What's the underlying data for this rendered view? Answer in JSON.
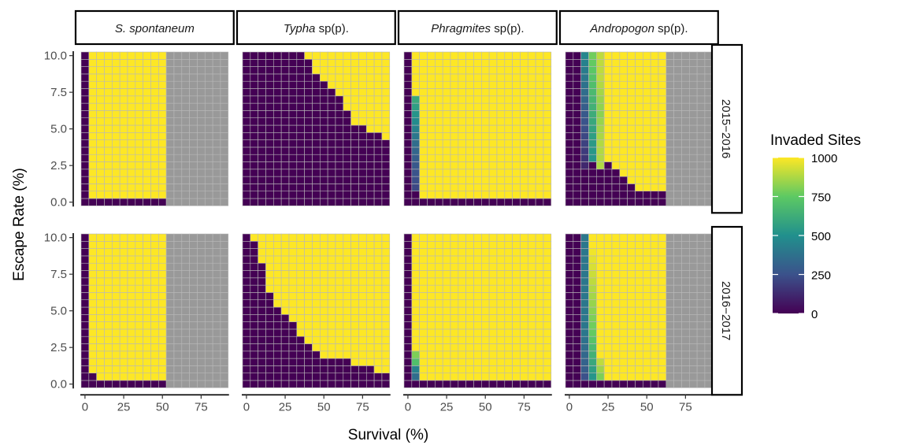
{
  "chart_data": {
    "type": "heatmap",
    "xlabel": "Survival (%)",
    "ylabel": "Escape Rate (%)",
    "x_values": [
      0,
      5,
      10,
      15,
      20,
      25,
      30,
      35,
      40,
      45,
      50,
      55,
      60,
      65,
      70,
      75,
      80,
      85,
      90
    ],
    "y_values": [
      0,
      0.5,
      1,
      1.5,
      2,
      2.5,
      3,
      3.5,
      4,
      4.5,
      5,
      5.5,
      6,
      6.5,
      7,
      7.5,
      8,
      8.5,
      9,
      9.5,
      10
    ],
    "x_ticks": [
      "0",
      "25",
      "50",
      "75"
    ],
    "y_ticks": [
      "0.0",
      "2.5",
      "5.0",
      "7.5",
      "10.0"
    ],
    "xlim": [
      0,
      90
    ],
    "ylim": [
      0,
      10
    ],
    "missing_color": "#999999",
    "grid_color": "#b8b8b8",
    "colorscale": [
      "#440154",
      "#3b528b",
      "#21908d",
      "#5dc963",
      "#fde725"
    ],
    "legend": {
      "title": "Invaded Sites",
      "ticks": [
        "0",
        "250",
        "500",
        "750",
        "1000"
      ],
      "range": [
        0,
        1000
      ],
      "placement": "right"
    },
    "columns": [
      {
        "italic": "S. spontaneum",
        "suffix": ""
      },
      {
        "italic": "Typha",
        "suffix": " sp(p)."
      },
      {
        "italic": "Phragmites",
        "suffix": " sp(p)."
      },
      {
        "italic": "Andropogon",
        "suffix": " sp(p)."
      }
    ],
    "rows": [
      "2015−2016",
      "2016−2017"
    ],
    "panels": [
      {
        "species": "S. spontaneum",
        "period": "2015−2016",
        "survival_max": 50,
        "rule": "invaded (1000) when survival ≥ 5 and escape ≥ 0.5; 0 otherwise; not simulated (NA) when survival > 50"
      },
      {
        "species": "Typha sp(p).",
        "period": "2015−2016",
        "min_survival_for_full_invasion_by_escape": {
          "10": 40,
          "9.5": 45,
          "9": 45,
          "8.5": 50,
          "8": 55,
          "7.5": 60,
          "7": 65,
          "6.5": 65,
          "6": 70,
          "5.5": 70,
          "5": 80,
          "4.5": 90,
          "4": null,
          "3.5": null,
          "3": null,
          "2.5": null,
          "2": null,
          "1.5": null,
          "1": null,
          "0.5": null,
          "0": null
        }
      },
      {
        "species": "Phragmites sp(p).",
        "period": "2015−2016",
        "survival_5_column": {
          "10": 1000,
          "9.5": 1000,
          "9": 1000,
          "8.5": 1000,
          "8": 1000,
          "7.5": 1000,
          "7": 600,
          "6.5": 560,
          "6": 520,
          "5.5": 480,
          "5": 440,
          "4.5": 400,
          "4": 360,
          "3.5": 330,
          "3": 300,
          "2.5": 280,
          "2": 260,
          "1.5": 240,
          "1": 220,
          "0.5": 0,
          "0": 0
        },
        "rule": "0 at survival 0; 1000 for survival ≥ 10 and escape ≥ 0.5; 0 at escape 0"
      },
      {
        "species": "Andropogon sp(p).",
        "period": "2015−2016",
        "survival_max": 60,
        "partial_columns": {
          "10": [
            0,
            0,
            0,
            0,
            0,
            120,
            160,
            180,
            200,
            220,
            240,
            260,
            280,
            300,
            330,
            360,
            380,
            400,
            420,
            440,
            460
          ],
          "15": [
            0,
            0,
            0,
            0,
            0,
            0,
            520,
            530,
            540,
            560,
            580,
            600,
            620,
            640,
            660,
            680,
            700,
            720,
            740,
            760,
            780
          ],
          "20": [
            0,
            0,
            0,
            0,
            0,
            880,
            880,
            880,
            880,
            870,
            860,
            840,
            820,
            830,
            840,
            860,
            880,
            900,
            900,
            900,
            900
          ]
        },
        "note": "columns listed bottom (escape 0) to top (escape 10); 0 at survival 0 and 5; full invasion above a boundary descending to escape 1 at survival 45–55"
      },
      {
        "species": "S. spontaneum",
        "period": "2016−2017",
        "survival_max": 50,
        "rule": "invaded (1000) when survival ≥ 10 and escape ≥ 0.5, or survival = 5 and escape ≥ 1; 0 otherwise"
      },
      {
        "species": "Typha sp(p).",
        "period": "2016−2017",
        "min_survival_for_full_invasion_by_escape": {
          "10": 5,
          "9.5": 10,
          "9": 10,
          "8.5": 10,
          "8": 15,
          "7.5": 15,
          "7": 15,
          "6.5": 15,
          "6": 20,
          "5.5": 20,
          "5": 25,
          "4.5": 30,
          "4": 35,
          "3.5": 35,
          "3": 40,
          "2.5": 45,
          "2": 50,
          "1.5": 70,
          "1": 85,
          "0.5": null,
          "0": null
        }
      },
      {
        "species": "Phragmites sp(p).",
        "period": "2016−2017",
        "survival_5_column": {
          "10": 1000,
          "9.5": 1000,
          "9": 1000,
          "8.5": 1000,
          "8": 1000,
          "7.5": 1000,
          "7": 1000,
          "6.5": 1000,
          "6": 1000,
          "5.5": 1000,
          "5": 1000,
          "4.5": 1000,
          "4": 1000,
          "3.5": 1000,
          "3": 1000,
          "2.5": 1000,
          "2": 800,
          "1.5": 700,
          "1": 440,
          "0.5": 360,
          "0": 0
        },
        "rule": "0 at survival 0; 1000 for survival ≥ 10 and escape ≥ 0.5; 0 at escape 0"
      },
      {
        "species": "Andropogon sp(p).",
        "period": "2016−2017",
        "survival_max": 60,
        "partial_columns": {
          "10": [
            0,
            250,
            300,
            320,
            340,
            360,
            380,
            400,
            400,
            400,
            400,
            400,
            400,
            400,
            400,
            400,
            400,
            400,
            400,
            400,
            400
          ],
          "15": [
            0,
            520,
            560,
            600,
            640,
            680,
            720,
            760,
            780,
            800,
            820,
            840,
            860,
            880,
            900,
            920,
            940,
            960,
            980,
            1000,
            1000
          ],
          "20": [
            0,
            800,
            850,
            900,
            1000,
            1000,
            1000,
            1000,
            1000,
            1000,
            1000,
            1000,
            1000,
            1000,
            1000,
            1000,
            1000,
            1000,
            1000,
            1000,
            1000
          ]
        },
        "note": "columns listed bottom (escape 0) to top (escape 10); 0 at survival 0 and 5; 1000 for survival ≥ 25 and escape ≥ 0.5; 0 at escape 0"
      }
    ]
  }
}
